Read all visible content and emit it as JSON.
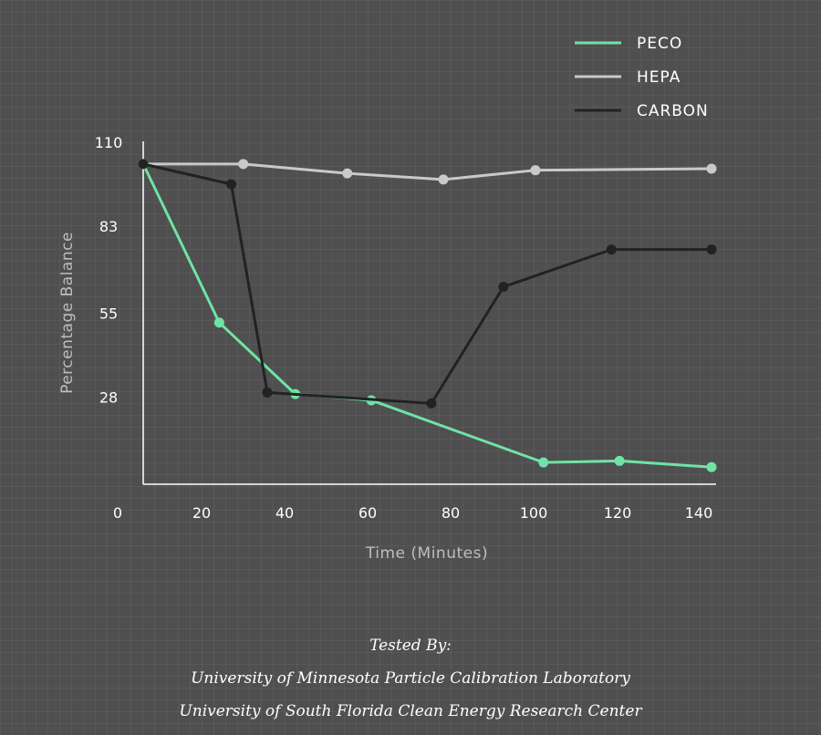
{
  "chart_data": {
    "type": "line",
    "xlabel": "Time (Minutes)",
    "ylabel": "Percentage Balance",
    "xlim": [
      0,
      142
    ],
    "ylim": [
      0,
      110
    ],
    "xticks": [
      0,
      20,
      40,
      60,
      80,
      100,
      120,
      140
    ],
    "yticks": [
      28,
      55,
      83,
      110
    ],
    "grid": true,
    "legend_position": "top-right",
    "series": [
      {
        "name": "PECO",
        "color": "#6fe3a6",
        "points": [
          [
            0,
            103
          ],
          [
            19,
            52
          ],
          [
            38,
            29
          ],
          [
            57,
            27
          ],
          [
            100,
            7
          ],
          [
            119,
            7.5
          ],
          [
            142,
            5.5
          ]
        ]
      },
      {
        "name": "HEPA",
        "color": "#c9c9c9",
        "points": [
          [
            0,
            103
          ],
          [
            25,
            103
          ],
          [
            51,
            100
          ],
          [
            75,
            98
          ],
          [
            98,
            101
          ],
          [
            142,
            101.5
          ]
        ]
      },
      {
        "name": "CARBON",
        "color": "#222222",
        "points": [
          [
            0,
            103
          ],
          [
            22,
            96.5
          ],
          [
            31,
            29.5
          ],
          [
            72,
            26
          ],
          [
            90,
            63.5
          ],
          [
            117,
            75.5
          ],
          [
            142,
            75.5
          ]
        ]
      }
    ]
  },
  "credits": {
    "heading": "Tested By:",
    "line1": "University of Minnesota Particle Calibration Laboratory",
    "line2": "University of South Florida Clean Energy Research Center"
  }
}
